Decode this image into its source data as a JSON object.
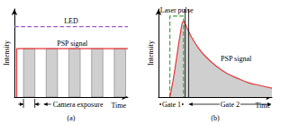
{
  "chart_data": [
    {
      "type": "line",
      "panel": "(a)",
      "xlabel": "Time",
      "ylabel": "Intensity",
      "xlim": [
        0,
        10
      ],
      "ylim": [
        0,
        10
      ],
      "tick_labels": false,
      "grid": false,
      "series": [
        {
          "name": "LED",
          "color": "#a05ac8",
          "line_style": "dashed",
          "x": [
            0,
            10
          ],
          "values": [
            8,
            8
          ]
        },
        {
          "name": "PSP signal",
          "color": "#e8373a",
          "line_style": "solid",
          "x": [
            0.2,
            0.2,
            10
          ],
          "values": [
            0,
            5.5,
            5.5
          ]
        }
      ],
      "exposures": {
        "name": "Camera exposure",
        "color": "#cfcfcf",
        "value": 5.5,
        "intervals": [
          [
            0.8,
            1.8
          ],
          [
            2.8,
            3.8
          ],
          [
            4.8,
            5.8
          ],
          [
            6.8,
            7.8
          ],
          [
            8.8,
            9.8
          ]
        ]
      }
    },
    {
      "type": "line",
      "panel": "(b)",
      "xlabel": "Time",
      "ylabel": "Intensity",
      "xlim": [
        0,
        10
      ],
      "ylim": [
        0,
        10
      ],
      "tick_labels": false,
      "grid": false,
      "series": [
        {
          "name": "Laser pulse",
          "color": "#3aa83a",
          "line_style": "dashed",
          "x": [
            1.0,
            1.0,
            2.2,
            2.2
          ],
          "values": [
            0,
            9.2,
            9.2,
            0
          ]
        },
        {
          "name": "PSP signal",
          "type": "area",
          "color": "#e8373a",
          "line_style": "solid",
          "x": [
            1.0,
            1.3,
            1.6,
            1.9,
            2.2,
            2.6,
            3.0,
            3.5,
            4.0,
            5.0,
            6.0,
            7.0,
            8.0,
            9.0,
            10.0
          ],
          "values": [
            0,
            2,
            4.5,
            7,
            8.6,
            7.6,
            6.6,
            5.6,
            4.8,
            3.6,
            2.7,
            2.1,
            1.6,
            1.3,
            1.0
          ]
        }
      ],
      "gates": [
        {
          "label": "Gate 1",
          "range": [
            0,
            2.3
          ]
        },
        {
          "label": "Gate 2",
          "range": [
            2.6,
            10
          ]
        }
      ]
    }
  ]
}
